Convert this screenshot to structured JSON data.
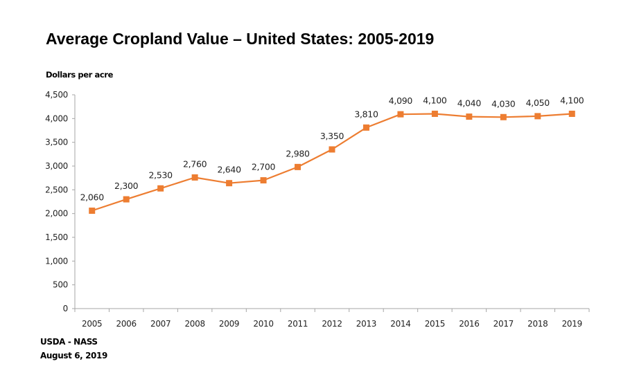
{
  "chart_data": {
    "type": "line",
    "title": "Average Cropland Value – United States: 2005-2019",
    "xlabel": "",
    "ylabel": "Dollars per acre",
    "categories": [
      "2005",
      "2006",
      "2007",
      "2008",
      "2009",
      "2010",
      "2011",
      "2012",
      "2013",
      "2014",
      "2015",
      "2016",
      "2017",
      "2018",
      "2019"
    ],
    "series": [
      {
        "name": "Average Cropland Value",
        "color": "#ED7D31",
        "values": [
          2060,
          2300,
          2530,
          2760,
          2640,
          2700,
          2980,
          3350,
          3810,
          4090,
          4100,
          4040,
          4030,
          4050,
          4100
        ],
        "data_labels": [
          "2,060",
          "2,300",
          "2,530",
          "2,760",
          "2,640",
          "2,700",
          "2,980",
          "3,350",
          "3,810",
          "4,090",
          "4,100",
          "4,040",
          "4,030",
          "4,050",
          "4,100"
        ]
      }
    ],
    "ylim": [
      0,
      4500
    ],
    "yticks": [
      0,
      500,
      1000,
      1500,
      2000,
      2500,
      3000,
      3500,
      4000,
      4500
    ],
    "ytick_labels": [
      "0",
      "500",
      "1,000",
      "1,500",
      "2,000",
      "2,500",
      "3,000",
      "3,500",
      "4,000",
      "4,500"
    ],
    "grid": false,
    "legend": "none",
    "marker": "square"
  },
  "footer": {
    "source": "USDA - NASS",
    "date": "August 6, 2019"
  }
}
